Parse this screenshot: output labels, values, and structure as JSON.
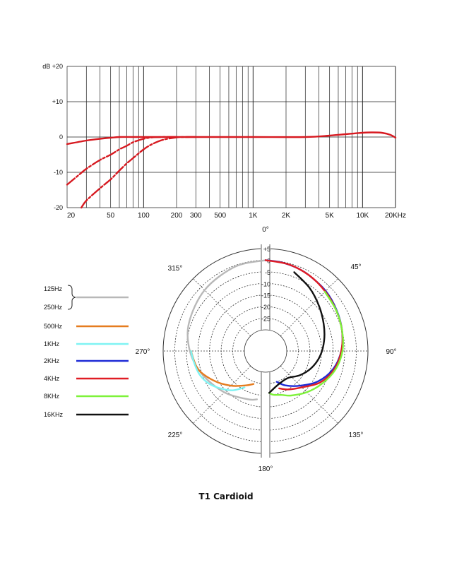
{
  "caption": "T1 Cardioid",
  "chart_data": [
    {
      "type": "line",
      "x_scale": "log",
      "xlim": [
        20,
        20000
      ],
      "ylim": [
        -20,
        20
      ],
      "grid": true,
      "x_tick_labels": [
        "20",
        "50",
        "100",
        "200",
        "300",
        "500",
        "1K",
        "2K",
        "5K",
        "10K",
        "20KHz"
      ],
      "y_tick_labels": [
        "dB +20",
        "+10",
        "0",
        "-10",
        "-20"
      ],
      "series": [
        {
          "color": "#d71920",
          "style": "solid",
          "x": [
            20,
            30,
            40,
            50,
            60,
            80,
            100,
            300,
            1000,
            3000,
            5000,
            7000,
            10000,
            12000,
            15000,
            18000,
            20000
          ],
          "y": [
            -2,
            -1,
            -0.5,
            -0.2,
            0,
            0,
            0,
            0,
            0,
            0,
            0.4,
            0.8,
            1.2,
            1.3,
            1.2,
            0.6,
            -0.2
          ]
        },
        {
          "color": "#d71920",
          "style": "dashed",
          "x": [
            20,
            25,
            30,
            40,
            50,
            60,
            70,
            80,
            100,
            120,
            150,
            200
          ],
          "y": [
            -13.5,
            -11,
            -9,
            -6.5,
            -5,
            -3.5,
            -2.5,
            -1.5,
            -0.5,
            -0.1,
            0,
            0
          ]
        },
        {
          "color": "#d71920",
          "style": "dashed",
          "x": [
            27,
            30,
            40,
            50,
            60,
            70,
            80,
            100,
            120,
            150,
            200,
            250,
            300
          ],
          "y": [
            -20,
            -18,
            -14.5,
            -12,
            -9.5,
            -7.5,
            -6,
            -3.5,
            -2,
            -0.8,
            -0.1,
            0,
            0
          ]
        }
      ]
    },
    {
      "type": "polar",
      "rlim": [
        -30,
        5
      ],
      "ring_labels": [
        "+5",
        "0",
        "-5",
        "-10",
        "-15",
        "-20",
        "-25"
      ],
      "angle_labels": [
        "0°",
        "45°",
        "90°",
        "135°",
        "180°",
        "225°",
        "270°",
        "315°"
      ],
      "legend": [
        "125Hz",
        "250Hz",
        "500Hz",
        "1KHz",
        "2KHz",
        "4KHz",
        "8KHz",
        "16KHz"
      ],
      "series": [
        {
          "name": "125Hz / 250Hz",
          "color": "#b8b8b8",
          "side": "left",
          "angles": [
            0,
            -20,
            -45,
            -70,
            -90,
            -110,
            -135,
            -160,
            -170
          ],
          "db": [
            0,
            -0.5,
            -2,
            -4,
            -6.5,
            -10,
            -14,
            -17,
            -18
          ]
        },
        {
          "name": "500Hz",
          "color": "#e57c1f",
          "side": "left",
          "angles": [
            -90,
            -105,
            -120,
            -135,
            -150,
            -160
          ],
          "db": [
            -7,
            -9,
            -13.5,
            -18,
            -22,
            -24
          ]
        },
        {
          "name": "1KHz",
          "color": "#7ff3f3",
          "side": "left",
          "angles": [
            -90,
            -100,
            -110,
            -120,
            -130,
            -140,
            -150
          ],
          "db": [
            -7,
            -8,
            -9,
            -11,
            -14,
            -17,
            -21
          ]
        },
        {
          "name": "2KHz",
          "color": "#1e2bd6",
          "side": "right",
          "angles": [
            0,
            10,
            20,
            30,
            45,
            60,
            75,
            90,
            105,
            120,
            135,
            150,
            160
          ],
          "db": [
            0,
            -0.3,
            -0.8,
            -1.5,
            -2.5,
            -3.8,
            -5,
            -6.5,
            -9,
            -13,
            -18,
            -22,
            -25
          ]
        },
        {
          "name": "4KHz",
          "color": "#e01c24",
          "side": "right",
          "angles": [
            0,
            15,
            30,
            45,
            60,
            75,
            90,
            105,
            120,
            135,
            150,
            160
          ],
          "db": [
            0,
            -0.5,
            -1.5,
            -2.8,
            -4,
            -5,
            -6.5,
            -8.5,
            -12,
            -17,
            -20,
            -22
          ]
        },
        {
          "name": "8KHz",
          "color": "#7ef23a",
          "side": "right",
          "angles": [
            45,
            60,
            75,
            90,
            105,
            120,
            135,
            150,
            160,
            170,
            175
          ],
          "db": [
            -3,
            -4,
            -5,
            -6,
            -8,
            -11,
            -14,
            -17,
            -19,
            -20,
            -21
          ]
        },
        {
          "name": "16KHz",
          "color": "#111111",
          "side": "right",
          "angles": [
            20,
            35,
            50,
            65,
            80,
            95,
            110,
            125,
            140,
            155,
            165,
            175
          ],
          "db": [
            -3,
            -6,
            -9,
            -11.5,
            -13.5,
            -15.5,
            -18,
            -21,
            -24,
            -24,
            -23,
            -21
          ]
        }
      ]
    }
  ]
}
